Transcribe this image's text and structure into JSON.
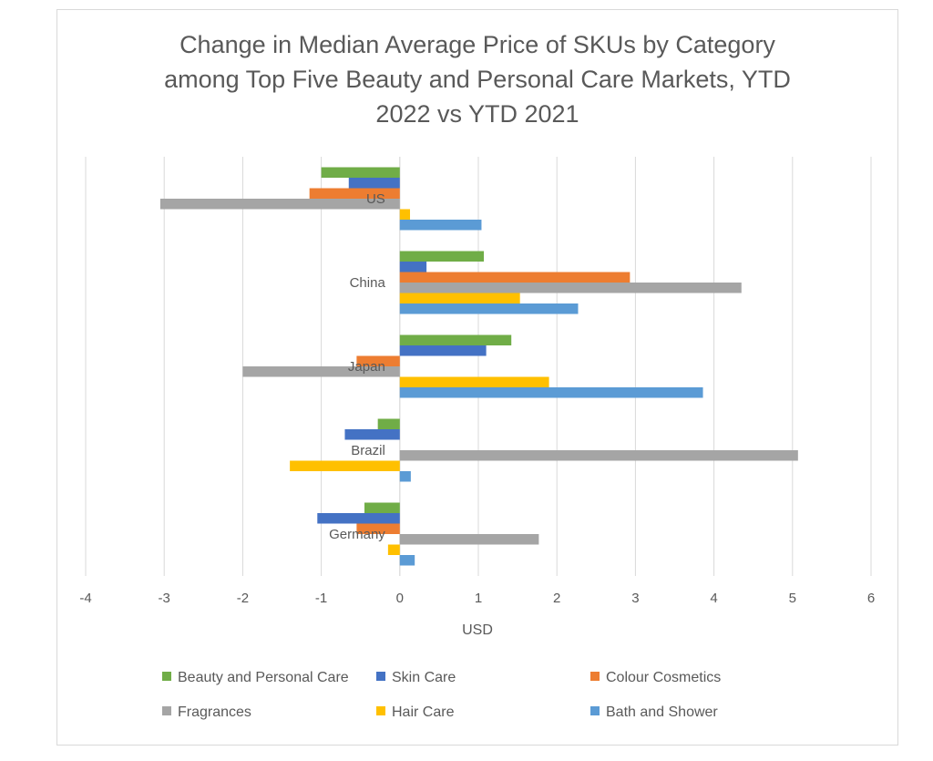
{
  "chart_data": {
    "type": "bar",
    "orientation": "horizontal",
    "title_lines": [
      "Change in Median Average Price of SKUs by Category",
      "among Top Five Beauty and Personal Care Markets, YTD",
      "2022 vs YTD 2021"
    ],
    "xlabel": "USD",
    "xlim": [
      -4,
      6
    ],
    "xticks": [
      -4,
      -3,
      -2,
      -1,
      0,
      1,
      2,
      3,
      4,
      5,
      6
    ],
    "grid": true,
    "legend_position": "bottom",
    "categories": [
      "US",
      "China",
      "Japan",
      "Brazil",
      "Germany"
    ],
    "series": [
      {
        "name": "Beauty and Personal Care",
        "color": "#70ad47",
        "values": [
          -1.0,
          1.07,
          1.42,
          -0.28,
          -0.45
        ]
      },
      {
        "name": "Skin Care",
        "color": "#4472c4",
        "values": [
          -0.65,
          0.34,
          1.1,
          -0.7,
          -1.05
        ]
      },
      {
        "name": "Colour Cosmetics",
        "color": "#ed7d31",
        "values": [
          -1.15,
          2.93,
          -0.55,
          0.0,
          -0.55
        ]
      },
      {
        "name": "Fragrances",
        "color": "#a5a5a5",
        "values": [
          -3.05,
          4.35,
          -2.0,
          5.07,
          1.77
        ]
      },
      {
        "name": "Hair Care",
        "color": "#ffc000",
        "values": [
          0.13,
          1.53,
          1.9,
          -1.4,
          -0.15
        ]
      },
      {
        "name": "Bath and Shower",
        "color": "#5b9bd5",
        "values": [
          1.04,
          2.27,
          3.86,
          0.14,
          0.19
        ]
      }
    ]
  }
}
